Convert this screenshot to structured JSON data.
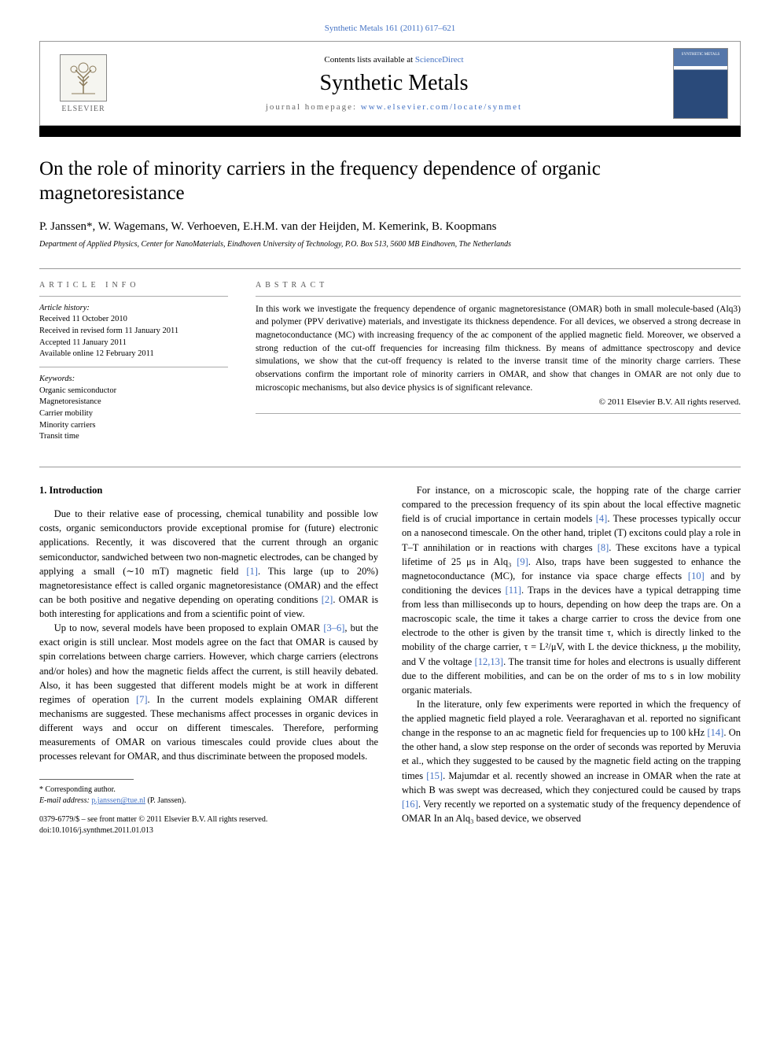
{
  "header": {
    "top_citation": "Synthetic Metals 161 (2011) 617–621",
    "contents_line_prefix": "Contents lists available at ",
    "contents_line_link": "ScienceDirect",
    "journal_title": "Synthetic Metals",
    "homepage_prefix": "journal homepage: ",
    "homepage_url": "www.elsevier.com/locate/synmet",
    "publisher_name": "ELSEVIER",
    "cover_label": "SYNTHETIC METALS"
  },
  "article": {
    "title": "On the role of minority carriers in the frequency dependence of organic magnetoresistance",
    "authors": "P. Janssen*, W. Wagemans, W. Verhoeven, E.H.M. van der Heijden, M. Kemerink, B. Koopmans",
    "affiliation": "Department of Applied Physics, Center for NanoMaterials, Eindhoven University of Technology, P.O. Box 513, 5600 MB Eindhoven, The Netherlands"
  },
  "info": {
    "heading": "ARTICLE INFO",
    "history_label": "Article history:",
    "history": {
      "received": "Received 11 October 2010",
      "revised": "Received in revised form 11 January 2011",
      "accepted": "Accepted 11 January 2011",
      "online": "Available online 12 February 2011"
    },
    "keywords_label": "Keywords:",
    "keywords": [
      "Organic semiconductor",
      "Magnetoresistance",
      "Carrier mobility",
      "Minority carriers",
      "Transit time"
    ]
  },
  "abstract": {
    "heading": "ABSTRACT",
    "text": "In this work we investigate the frequency dependence of organic magnetoresistance (OMAR) both in small molecule-based (Alq3) and polymer (PPV derivative) materials, and investigate its thickness dependence. For all devices, we observed a strong decrease in magnetoconductance (MC) with increasing frequency of the ac component of the applied magnetic field. Moreover, we observed a strong reduction of the cut-off frequencies for increasing film thickness. By means of admittance spectroscopy and device simulations, we show that the cut-off frequency is related to the inverse transit time of the minority charge carriers. These observations confirm the important role of minority carriers in OMAR, and show that changes in OMAR are not only due to microscopic mechanisms, but also device physics is of significant relevance.",
    "copyright": "© 2011 Elsevier B.V. All rights reserved."
  },
  "body": {
    "section1_heading": "1. Introduction",
    "p1": "Due to their relative ease of processing, chemical tunability and possible low costs, organic semiconductors provide exceptional promise for (future) electronic applications. Recently, it was discovered that the current through an organic semiconductor, sandwiched between two non-magnetic electrodes, can be changed by applying a small (∼10 mT) magnetic field [1]. This large (up to 20%) magnetoresistance effect is called organic magnetoresistance (OMAR) and the effect can be both positive and negative depending on operating conditions [2]. OMAR is both interesting for applications and from a scientific point of view.",
    "p2": "Up to now, several models have been proposed to explain OMAR [3–6], but the exact origin is still unclear. Most models agree on the fact that OMAR is caused by spin correlations between charge carriers. However, which charge carriers (electrons and/or holes) and how the magnetic fields affect the current, is still heavily debated. Also, it has been suggested that different models might be at work in different regimes of operation [7]. In the current models explaining OMAR different mechanisms are suggested. These mechanisms affect processes in organic devices in different ways and occur on different timescales. Therefore, performing measurements of OMAR on various timescales could provide clues about the processes relevant for OMAR, and thus discriminate between the proposed models.",
    "p3": "For instance, on a microscopic scale, the hopping rate of the charge carrier compared to the precession frequency of its spin about the local effective magnetic field is of crucial importance in certain models [4]. These processes typically occur on a nanosecond timescale. On the other hand, triplet (T) excitons could play a role in T–T annihilation or in reactions with charges [8]. These excitons have a typical lifetime of 25 μs in Alq₃ [9]. Also, traps have been suggested to enhance the magnetoconductance (MC), for instance via space charge effects [10] and by conditioning the devices [11]. Traps in the devices have a typical detrapping time from less than milliseconds up to hours, depending on how deep the traps are. On a macroscopic scale, the time it takes a charge carrier to cross the device from one electrode to the other is given by the transit time τ, which is directly linked to the mobility of the charge carrier, τ = L²/μV, with L the device thickness, μ the mobility, and V the voltage [12,13]. The transit time for holes and electrons is usually different due to the different mobilities, and can be on the order of ms to s in low mobility organic materials.",
    "p4": "In the literature, only few experiments were reported in which the frequency of the applied magnetic field played a role. Veeraraghavan et al. reported no significant change in the response to an ac magnetic field for frequencies up to 100 kHz [14]. On the other hand, a slow step response on the order of seconds was reported by Meruvia et al., which they suggested to be caused by the magnetic field acting on the trapping times [15]. Majumdar et al. recently showed an increase in OMAR when the rate at which B was swept was decreased, which they conjectured could be caused by traps [16]. Very recently we reported on a systematic study of the frequency dependence of OMAR In an Alq₃ based device, we observed",
    "refs": {
      "r1": "[1]",
      "r2": "[2]",
      "r3_6": "[3–6]",
      "r4": "[4]",
      "r7": "[7]",
      "r8": "[8]",
      "r9": "[9]",
      "r10": "[10]",
      "r11": "[11]",
      "r12_13": "[12,13]",
      "r14": "[14]",
      "r15": "[15]",
      "r16": "[16]"
    }
  },
  "corresponding": {
    "label": "* Corresponding author.",
    "email_label": "E-mail address: ",
    "email": "p.janssen@tue.nl",
    "email_suffix": " (P. Janssen)."
  },
  "footer": {
    "issn_line": "0379-6779/$ – see front matter © 2011 Elsevier B.V. All rights reserved.",
    "doi": "doi:10.1016/j.synthmet.2011.01.013"
  },
  "colors": {
    "link": "#4472c4",
    "text": "#000000",
    "divider": "#999999",
    "bar": "#000000"
  }
}
